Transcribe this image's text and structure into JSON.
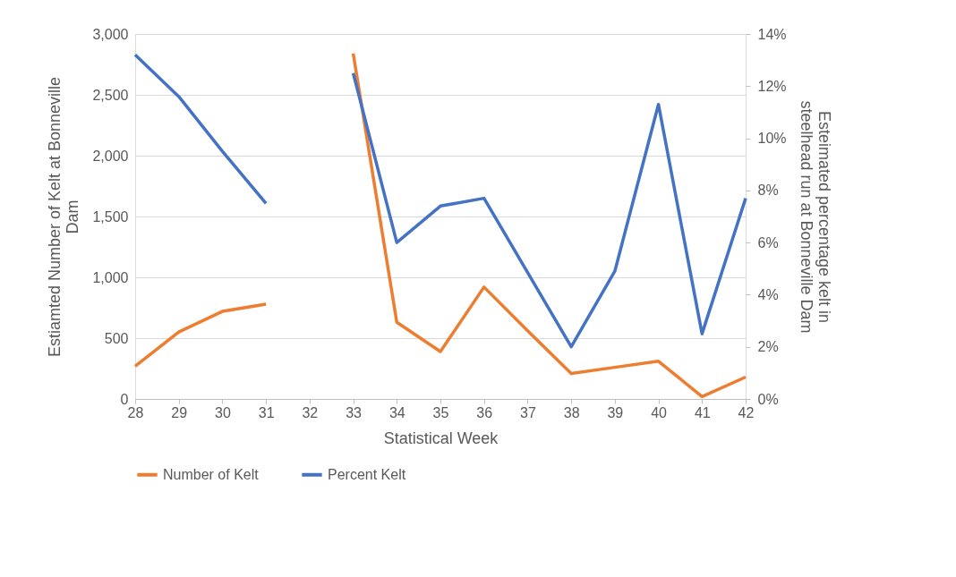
{
  "chart_data": {
    "type": "line",
    "xlabel": "Statistical Week",
    "ylabel": "Estiamted Number of Kelt at Bonneville Dam",
    "y2label": "Esteimated percentage  kelt in steelhead run at Bonneville Dam",
    "categories": [
      "28",
      "29",
      "30",
      "31",
      "32",
      "33",
      "34",
      "35",
      "36",
      "37",
      "38",
      "39",
      "40",
      "41",
      "42"
    ],
    "series": [
      {
        "name": "Number of Kelt",
        "color": "#ed7d31",
        "values": [
          270,
          550,
          720,
          780,
          null,
          2840,
          630,
          390,
          920,
          560,
          210,
          260,
          310,
          20,
          180
        ]
      },
      {
        "name": "Percent Kelt",
        "color": "#4472c4",
        "axis": "y2",
        "values": [
          13.2,
          11.6,
          9.5,
          7.5,
          null,
          12.5,
          6.0,
          7.4,
          7.7,
          4.85,
          2.0,
          4.9,
          11.3,
          2.5,
          7.7
        ]
      }
    ],
    "ylim": [
      0,
      3000
    ],
    "yticks": [
      {
        "value": 0,
        "label": "0"
      },
      {
        "value": 500,
        "label": "500"
      },
      {
        "value": 1000,
        "label": "1,000"
      },
      {
        "value": 1500,
        "label": "1,500"
      },
      {
        "value": 2000,
        "label": "2,000"
      },
      {
        "value": 2500,
        "label": "2,500"
      },
      {
        "value": 3000,
        "label": "3,000"
      }
    ],
    "y2lim": [
      0,
      14
    ],
    "y2ticks": [
      {
        "value": 0,
        "label": "0%"
      },
      {
        "value": 2,
        "label": "2%"
      },
      {
        "value": 4,
        "label": "4%"
      },
      {
        "value": 6,
        "label": "6%"
      },
      {
        "value": 8,
        "label": "8%"
      },
      {
        "value": 10,
        "label": "10%"
      },
      {
        "value": 12,
        "label": "12%"
      },
      {
        "value": 14,
        "label": "14%"
      }
    ],
    "grid": "y",
    "legend": "bottom",
    "marker": "none",
    "line_style": "solid"
  }
}
